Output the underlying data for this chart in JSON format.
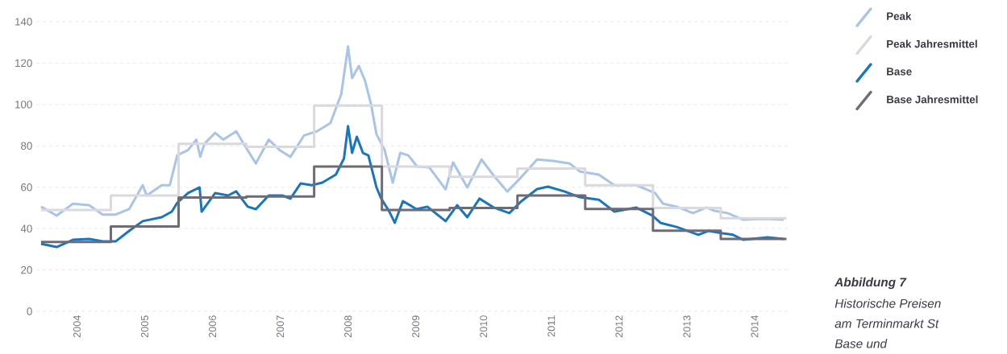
{
  "chart_data": {
    "type": "line",
    "xlim": [
      2003.9,
      2015.0
    ],
    "xticks": [
      {
        "value": 2004.5,
        "label": "2004"
      },
      {
        "value": 2005.5,
        "label": "2005"
      },
      {
        "value": 2006.5,
        "label": "2006"
      },
      {
        "value": 2007.5,
        "label": "2007"
      },
      {
        "value": 2008.5,
        "label": "2008"
      },
      {
        "value": 2009.5,
        "label": "2009"
      },
      {
        "value": 2010.5,
        "label": "2010"
      },
      {
        "value": 2011.5,
        "label": "2011"
      },
      {
        "value": 2012.5,
        "label": "2012"
      },
      {
        "value": 2013.5,
        "label": "2013"
      },
      {
        "value": 2014.5,
        "label": "2014"
      }
    ],
    "ylim": [
      0,
      140
    ],
    "yticks": [
      0,
      20,
      40,
      60,
      80,
      100,
      120,
      140
    ],
    "grid": "y",
    "legend": "top right",
    "marker": "none",
    "line_style": "solid",
    "series": [
      {
        "name": "Peak",
        "color": "#a9c4e6",
        "x": [
          2003.97,
          2004.2,
          2004.44,
          2004.68,
          2004.88,
          2005.07,
          2005.27,
          2005.47,
          2005.53,
          2005.75,
          2005.87,
          2005.98,
          2006.14,
          2006.26,
          2006.32,
          2006.38,
          2006.54,
          2006.66,
          2006.85,
          2006.97,
          2007.14,
          2007.33,
          2007.49,
          2007.65,
          2007.85,
          2008.04,
          2008.24,
          2008.4,
          2008.5,
          2008.56,
          2008.66,
          2008.75,
          2008.84,
          2008.92,
          2009.04,
          2009.16,
          2009.27,
          2009.39,
          2009.52,
          2009.7,
          2009.94,
          2010.05,
          2010.26,
          2010.47,
          2010.65,
          2010.85,
          2011.06,
          2011.29,
          2011.53,
          2011.77,
          2011.92,
          2012.2,
          2012.43,
          2012.75,
          2013.03,
          2013.15,
          2013.35,
          2013.59,
          2013.79,
          2013.91,
          2014.1,
          2014.33,
          2014.62,
          2014.93
        ],
        "values": [
          50.6,
          46.3,
          52,
          51.3,
          46.8,
          46.8,
          49.4,
          61,
          56,
          61,
          61,
          75.4,
          78,
          83,
          74.7,
          81,
          86.3,
          83,
          87,
          80.5,
          71.5,
          83,
          78,
          74.7,
          85,
          87,
          91,
          105,
          128,
          112.8,
          118.6,
          111.6,
          100,
          85.6,
          78,
          62.2,
          76.6,
          75.4,
          70,
          69.6,
          59,
          72,
          59.9,
          73.4,
          65.6,
          57.9,
          65,
          73.4,
          72.7,
          71.5,
          67.6,
          66.1,
          61,
          61,
          57.2,
          52,
          50.6,
          47.5,
          50.2,
          48.6,
          47.5,
          44.3,
          44.7,
          44.3
        ]
      },
      {
        "name": "Peak Jahresmittel",
        "type": "step",
        "color": "#d9d9de",
        "x": [
          2003.97,
          2005,
          2006,
          2007,
          2008,
          2009,
          2010,
          2011,
          2012,
          2013,
          2014,
          2014.97
        ],
        "values": [
          49,
          56,
          81,
          79.5,
          99.5,
          70,
          65,
          69,
          61,
          50,
          45,
          45
        ]
      },
      {
        "name": "Base",
        "color": "#1a76bb",
        "x": [
          2003.97,
          2004.2,
          2004.44,
          2004.68,
          2004.88,
          2005.07,
          2005.27,
          2005.47,
          2005.75,
          2005.9,
          2005.98,
          2006.14,
          2006.31,
          2006.34,
          2006.54,
          2006.73,
          2006.85,
          2007.02,
          2007.14,
          2007.33,
          2007.53,
          2007.65,
          2007.8,
          2007.97,
          2008.12,
          2008.32,
          2008.44,
          2008.5,
          2008.56,
          2008.63,
          2008.72,
          2008.8,
          2008.92,
          2008.99,
          2009.11,
          2009.19,
          2009.31,
          2009.51,
          2009.67,
          2009.94,
          2010.11,
          2010.26,
          2010.44,
          2010.65,
          2010.88,
          2011.06,
          2011.29,
          2011.45,
          2011.69,
          2011.92,
          2012.2,
          2012.43,
          2012.75,
          2012.99,
          2013.11,
          2013.35,
          2013.67,
          2013.82,
          2014.03,
          2014.18,
          2014.33,
          2014.69,
          2014.93
        ],
        "values": [
          32.7,
          31.1,
          34.6,
          35,
          33.8,
          33.8,
          38.9,
          43.6,
          45.5,
          48.2,
          52.5,
          57.2,
          59.9,
          48.2,
          57.2,
          56,
          58,
          50.6,
          49.4,
          56,
          56,
          54.5,
          61.8,
          61,
          62.2,
          66.1,
          73.9,
          89.5,
          76.6,
          84.4,
          76.6,
          75.4,
          59.9,
          54.5,
          48.2,
          42.8,
          53.3,
          49.4,
          50.6,
          43.6,
          51.3,
          45.5,
          54.5,
          50.2,
          47.5,
          53.3,
          59.1,
          60.3,
          58,
          55.2,
          54,
          48.2,
          50.2,
          46.3,
          42.8,
          40.8,
          37,
          38.9,
          37.7,
          37,
          34.6,
          35.8,
          35
        ]
      },
      {
        "name": "Base Jahresmittel",
        "type": "step",
        "color": "#6e6a76",
        "x": [
          2003.97,
          2005,
          2006,
          2007,
          2008,
          2009,
          2010,
          2011,
          2012,
          2013,
          2014,
          2014.97
        ],
        "values": [
          33.5,
          41,
          55,
          55.5,
          70,
          49,
          50,
          56,
          49.5,
          39,
          35,
          35
        ]
      }
    ],
    "annotations": [
      "Abbildung 7",
      "Historische Preisen",
      "am Terminmarkt St",
      "Base und"
    ]
  }
}
